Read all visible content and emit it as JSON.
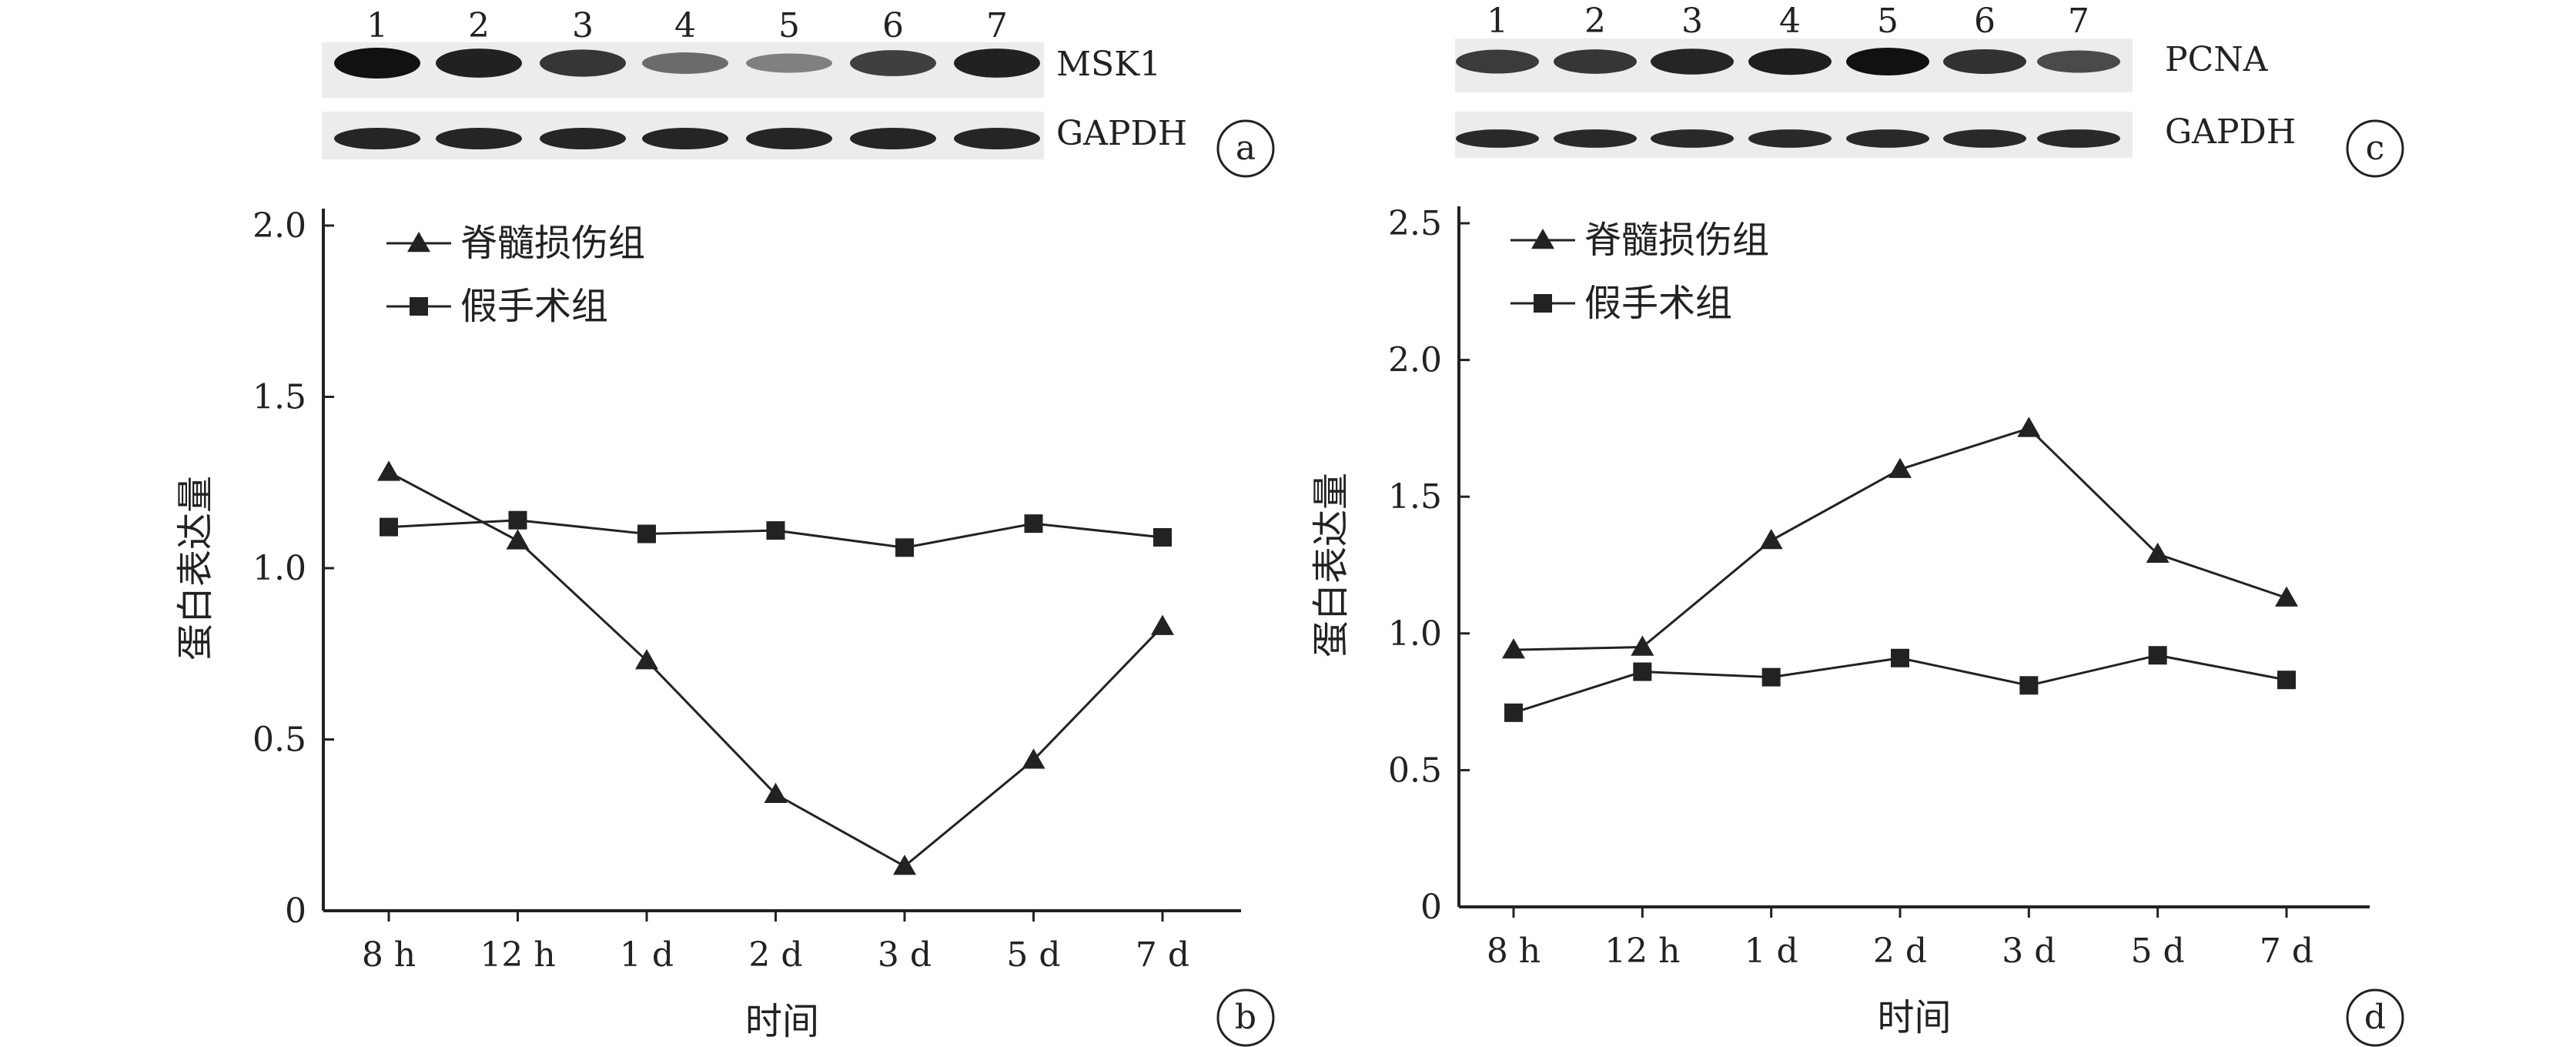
{
  "panels": {
    "a": {
      "letter": "a",
      "lanes": [
        "1",
        "2",
        "3",
        "4",
        "5",
        "6",
        "7"
      ],
      "blots": [
        {
          "label": "MSK1",
          "band_intensity": [
            1.0,
            0.9,
            0.78,
            0.45,
            0.32,
            0.72,
            0.9
          ]
        },
        {
          "label": "GAPDH",
          "band_intensity": [
            0.88,
            0.88,
            0.88,
            0.88,
            0.88,
            0.88,
            0.88
          ]
        }
      ]
    },
    "c": {
      "letter": "c",
      "lanes": [
        "1",
        "2",
        "3",
        "4",
        "5",
        "6",
        "7"
      ],
      "blots": [
        {
          "label": "PCNA",
          "band_intensity": [
            0.75,
            0.78,
            0.88,
            0.92,
            1.0,
            0.8,
            0.65
          ]
        },
        {
          "label": "GAPDH",
          "band_intensity": [
            0.85,
            0.85,
            0.85,
            0.85,
            0.85,
            0.85,
            0.85
          ]
        }
      ]
    },
    "b": {
      "letter": "b"
    },
    "d": {
      "letter": "d"
    }
  },
  "chart_data": [
    {
      "panel": "b",
      "type": "line",
      "categories": [
        "8 h",
        "12 h",
        "1 d",
        "2 d",
        "3 d",
        "5 d",
        "7 d"
      ],
      "series": [
        {
          "name": "脊髓损伤组",
          "marker": "triangle",
          "values": [
            1.28,
            1.08,
            0.73,
            0.34,
            0.13,
            0.44,
            0.83
          ]
        },
        {
          "name": "假手术组",
          "marker": "square",
          "values": [
            1.12,
            1.14,
            1.1,
            1.11,
            1.06,
            1.13,
            1.09
          ]
        }
      ],
      "xlabel": "时间",
      "ylabel": "蛋白表达量",
      "ylim": [
        0,
        2.0
      ],
      "yticks": [
        "0",
        "0.5",
        "1.0",
        "1.5",
        "2.0"
      ],
      "grid": false,
      "legend_position": "top-left"
    },
    {
      "panel": "d",
      "type": "line",
      "categories": [
        "8 h",
        "12 h",
        "1 d",
        "2 d",
        "3 d",
        "5 d",
        "7 d"
      ],
      "series": [
        {
          "name": "脊髓损伤组",
          "marker": "triangle",
          "values": [
            0.94,
            0.95,
            1.34,
            1.6,
            1.75,
            1.29,
            1.13
          ]
        },
        {
          "name": "假手术组",
          "marker": "square",
          "values": [
            0.71,
            0.86,
            0.84,
            0.91,
            0.81,
            0.92,
            0.83
          ]
        }
      ],
      "xlabel": "时间",
      "ylabel": "蛋白表达量",
      "ylim": [
        0,
        2.5
      ],
      "yticks": [
        "0",
        "0.5",
        "1.0",
        "1.5",
        "2.0",
        "2.5"
      ],
      "grid": false,
      "legend_position": "top-left"
    }
  ]
}
